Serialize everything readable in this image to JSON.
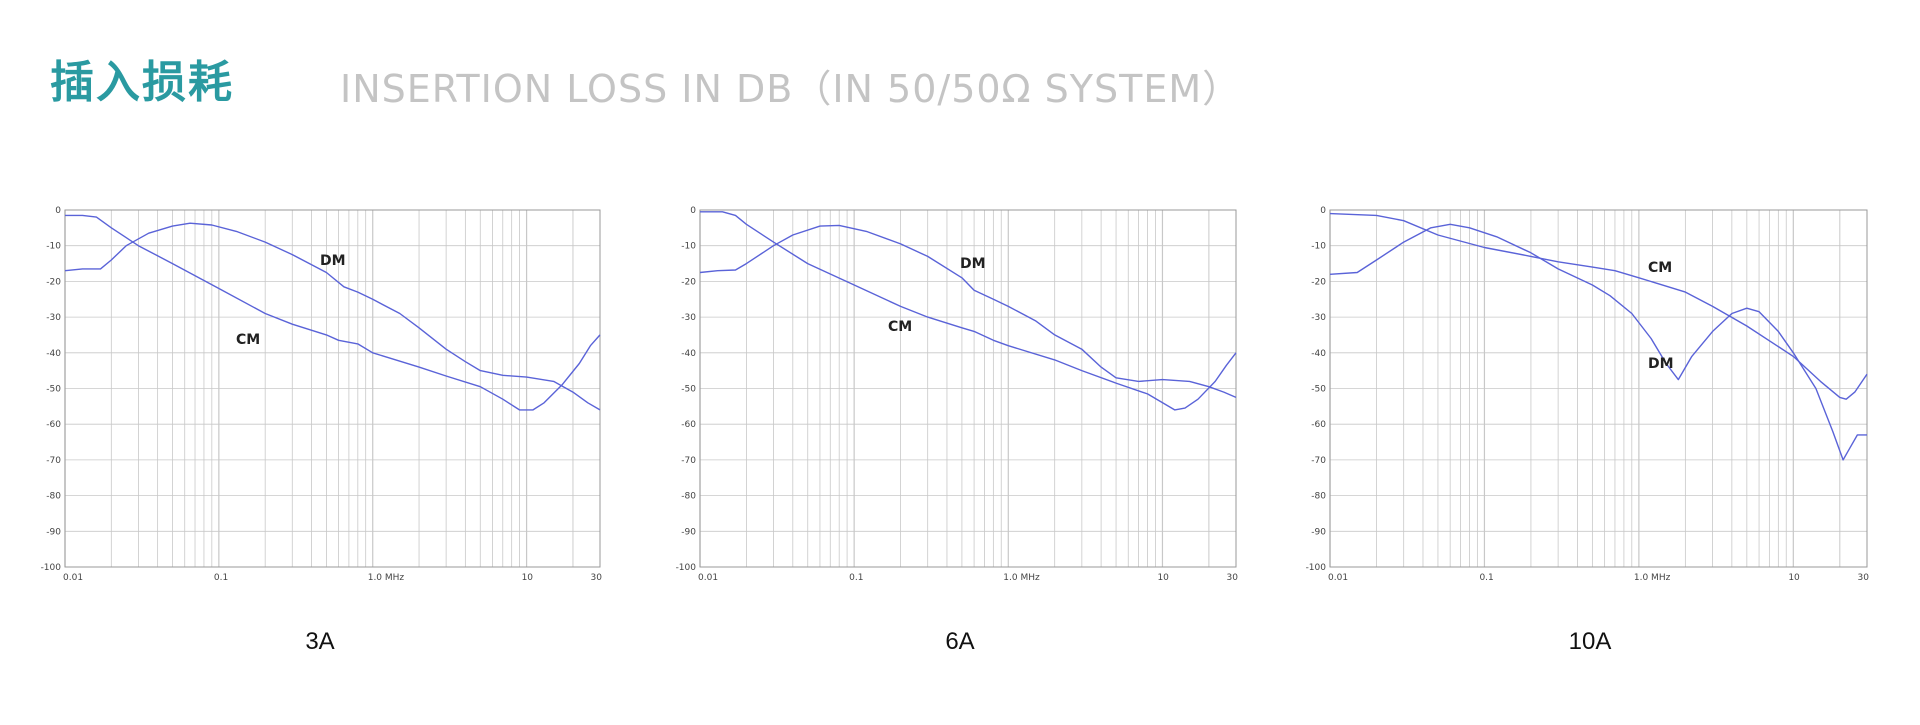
{
  "header": {
    "title_cn": "插入损耗",
    "title_en": "INSERTION LOSS IN DB（IN 50/50Ω SYSTEM）"
  },
  "colors": {
    "accent": "#2a9aa1",
    "subtitle": "#c4c4c4",
    "line": "#5a63d8",
    "grid": "#c8c8c8"
  },
  "chart_data": [
    {
      "type": "line",
      "caption": "3A",
      "xscale": "log",
      "xlim": [
        0.01,
        30
      ],
      "ylim": [
        -100,
        0
      ],
      "x_ticks": [
        0.01,
        0.1,
        1.0,
        10,
        30
      ],
      "x_tick_labels": [
        "0.01",
        "0.1",
        "1.0  MHz",
        "10",
        "30"
      ],
      "y_ticks": [
        0,
        -10,
        -20,
        -30,
        -40,
        -50,
        -60,
        -70,
        -80,
        -90,
        -100
      ],
      "grid": true,
      "series": [
        {
          "name": "DM",
          "points": [
            [
              0.01,
              -17
            ],
            [
              0.013,
              -16.5
            ],
            [
              0.017,
              -16.5
            ],
            [
              0.02,
              -14
            ],
            [
              0.025,
              -10
            ],
            [
              0.035,
              -6.5
            ],
            [
              0.05,
              -4.5
            ],
            [
              0.065,
              -3.7
            ],
            [
              0.09,
              -4.2
            ],
            [
              0.13,
              -6
            ],
            [
              0.2,
              -9
            ],
            [
              0.3,
              -12.5
            ],
            [
              0.5,
              -17.5
            ],
            [
              0.65,
              -21.5
            ],
            [
              0.8,
              -23
            ],
            [
              1.0,
              -25
            ],
            [
              1.5,
              -29
            ],
            [
              2,
              -33
            ],
            [
              3,
              -39
            ],
            [
              4,
              -42.5
            ],
            [
              5,
              -45
            ],
            [
              7,
              -46.3
            ],
            [
              10,
              -46.8
            ],
            [
              15,
              -48
            ],
            [
              20,
              -51
            ],
            [
              25,
              -54
            ],
            [
              30,
              -56
            ]
          ]
        },
        {
          "name": "CM",
          "points": [
            [
              0.01,
              -1.5
            ],
            [
              0.013,
              -1.5
            ],
            [
              0.016,
              -2
            ],
            [
              0.02,
              -5
            ],
            [
              0.03,
              -10
            ],
            [
              0.05,
              -15
            ],
            [
              0.1,
              -22
            ],
            [
              0.2,
              -29
            ],
            [
              0.3,
              -32
            ],
            [
              0.5,
              -35
            ],
            [
              0.6,
              -36.5
            ],
            [
              0.8,
              -37.5
            ],
            [
              1.0,
              -40
            ],
            [
              2,
              -44
            ],
            [
              3,
              -46.5
            ],
            [
              5,
              -49.5
            ],
            [
              7,
              -53
            ],
            [
              9,
              -56
            ],
            [
              11,
              -56
            ],
            [
              13,
              -54
            ],
            [
              17,
              -49
            ],
            [
              22,
              -43
            ],
            [
              26,
              -38
            ],
            [
              30,
              -35
            ]
          ]
        }
      ],
      "annotations": [
        "DM",
        "CM"
      ]
    },
    {
      "type": "line",
      "caption": "6A",
      "xscale": "log",
      "xlim": [
        0.01,
        30
      ],
      "ylim": [
        -100,
        0
      ],
      "x_ticks": [
        0.01,
        0.1,
        1.0,
        10,
        30
      ],
      "x_tick_labels": [
        "0.01",
        "0.1",
        "1.0  MHz",
        "10",
        "30"
      ],
      "y_ticks": [
        0,
        -10,
        -20,
        -30,
        -40,
        -50,
        -60,
        -70,
        -80,
        -90,
        -100
      ],
      "grid": true,
      "series": [
        {
          "name": "DM",
          "points": [
            [
              0.01,
              -17.5
            ],
            [
              0.013,
              -17
            ],
            [
              0.017,
              -16.8
            ],
            [
              0.02,
              -15
            ],
            [
              0.03,
              -10
            ],
            [
              0.04,
              -7
            ],
            [
              0.06,
              -4.5
            ],
            [
              0.08,
              -4.3
            ],
            [
              0.12,
              -6
            ],
            [
              0.2,
              -9.5
            ],
            [
              0.3,
              -13
            ],
            [
              0.5,
              -19
            ],
            [
              0.6,
              -22.5
            ],
            [
              0.8,
              -25
            ],
            [
              1.0,
              -27
            ],
            [
              1.5,
              -31
            ],
            [
              2,
              -35
            ],
            [
              3,
              -39
            ],
            [
              4,
              -44
            ],
            [
              5,
              -47
            ],
            [
              7,
              -48
            ],
            [
              10,
              -47.5
            ],
            [
              15,
              -48
            ],
            [
              20,
              -49.5
            ],
            [
              25,
              -51
            ],
            [
              30,
              -52.5
            ]
          ]
        },
        {
          "name": "CM",
          "points": [
            [
              0.01,
              -0.5
            ],
            [
              0.014,
              -0.5
            ],
            [
              0.017,
              -1.5
            ],
            [
              0.02,
              -4
            ],
            [
              0.03,
              -9
            ],
            [
              0.05,
              -15
            ],
            [
              0.1,
              -21
            ],
            [
              0.2,
              -27
            ],
            [
              0.3,
              -30
            ],
            [
              0.5,
              -33
            ],
            [
              0.6,
              -34
            ],
            [
              0.8,
              -36.5
            ],
            [
              1.0,
              -38
            ],
            [
              2,
              -42
            ],
            [
              3,
              -45
            ],
            [
              5,
              -48.5
            ],
            [
              8,
              -51.5
            ],
            [
              12,
              -56
            ],
            [
              14,
              -55.5
            ],
            [
              17,
              -53
            ],
            [
              22,
              -48
            ],
            [
              26,
              -43.5
            ],
            [
              30,
              -40
            ]
          ]
        }
      ],
      "annotations": [
        "DM",
        "CM"
      ]
    },
    {
      "type": "line",
      "caption": "10A",
      "xscale": "log",
      "xlim": [
        0.01,
        30
      ],
      "ylim": [
        -100,
        0
      ],
      "x_ticks": [
        0.01,
        0.1,
        1.0,
        10,
        30
      ],
      "x_tick_labels": [
        "0.01",
        "0.1",
        "1.0  MHz",
        "10",
        "30"
      ],
      "y_ticks": [
        0,
        -10,
        -20,
        -30,
        -40,
        -50,
        -60,
        -70,
        -80,
        -90,
        -100
      ],
      "grid": true,
      "series": [
        {
          "name": "CM",
          "points": [
            [
              0.01,
              -1
            ],
            [
              0.02,
              -1.5
            ],
            [
              0.03,
              -3
            ],
            [
              0.05,
              -7
            ],
            [
              0.1,
              -10.5
            ],
            [
              0.2,
              -13
            ],
            [
              0.3,
              -14.5
            ],
            [
              0.5,
              -16
            ],
            [
              0.7,
              -17
            ],
            [
              1.0,
              -19
            ],
            [
              2,
              -23
            ],
            [
              3,
              -27
            ],
            [
              5,
              -32.5
            ],
            [
              10,
              -41
            ],
            [
              15,
              -48
            ],
            [
              20,
              -52.5
            ],
            [
              22,
              -53
            ],
            [
              25,
              -51
            ],
            [
              30,
              -46
            ]
          ]
        },
        {
          "name": "DM",
          "points": [
            [
              0.01,
              -18
            ],
            [
              0.015,
              -17.5
            ],
            [
              0.02,
              -14
            ],
            [
              0.03,
              -9
            ],
            [
              0.045,
              -5
            ],
            [
              0.06,
              -4
            ],
            [
              0.08,
              -5
            ],
            [
              0.12,
              -7.5
            ],
            [
              0.2,
              -12
            ],
            [
              0.3,
              -16.5
            ],
            [
              0.5,
              -21
            ],
            [
              0.65,
              -24
            ],
            [
              0.9,
              -29
            ],
            [
              1.2,
              -36
            ],
            [
              1.5,
              -43
            ],
            [
              1.8,
              -47.5
            ],
            [
              2.2,
              -41
            ],
            [
              3,
              -34
            ],
            [
              4,
              -29
            ],
            [
              5,
              -27.5
            ],
            [
              6,
              -28.5
            ],
            [
              8,
              -34
            ],
            [
              10,
              -40
            ],
            [
              14,
              -50
            ],
            [
              18,
              -62
            ],
            [
              21,
              -70
            ],
            [
              23,
              -67
            ],
            [
              26,
              -63
            ],
            [
              30,
              -63
            ]
          ]
        }
      ],
      "annotations": [
        "CM",
        "DM"
      ]
    }
  ]
}
